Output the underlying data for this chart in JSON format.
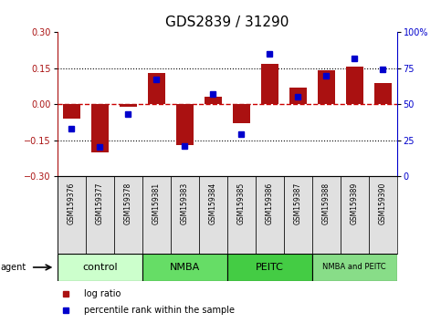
{
  "title": "GDS2839 / 31290",
  "samples": [
    "GSM159376",
    "GSM159377",
    "GSM159378",
    "GSM159381",
    "GSM159383",
    "GSM159384",
    "GSM159385",
    "GSM159386",
    "GSM159387",
    "GSM159388",
    "GSM159389",
    "GSM159390"
  ],
  "log_ratio": [
    -0.06,
    -0.2,
    -0.01,
    0.13,
    -0.17,
    0.03,
    -0.08,
    0.17,
    0.07,
    0.14,
    0.155,
    0.09
  ],
  "percentile": [
    33,
    20,
    43,
    67,
    21,
    57,
    29,
    85,
    55,
    70,
    82,
    74
  ],
  "groups": [
    {
      "label": "control",
      "start": 0,
      "end": 3,
      "color": "#ccffcc"
    },
    {
      "label": "NMBA",
      "start": 3,
      "end": 6,
      "color": "#66dd66"
    },
    {
      "label": "PEITC",
      "start": 6,
      "end": 9,
      "color": "#44cc44"
    },
    {
      "label": "NMBA and PEITC",
      "start": 9,
      "end": 12,
      "color": "#88dd88"
    }
  ],
  "ylim_left": [
    -0.3,
    0.3
  ],
  "ylim_right": [
    0,
    100
  ],
  "yticks_left": [
    -0.3,
    -0.15,
    0,
    0.15,
    0.3
  ],
  "yticks_right": [
    0,
    25,
    50,
    75,
    100
  ],
  "bar_color": "#aa1111",
  "dot_color": "#0000cc",
  "hline_color": "#cc0000",
  "dotted_line_color": "#000000",
  "bg_color": "#ffffff",
  "plot_bg": "#ffffff",
  "title_fontsize": 11,
  "tick_fontsize": 7,
  "sample_fontsize": 5.5,
  "group_fontsize": 8,
  "group_fontsize_small": 6,
  "legend_fontsize": 7,
  "agent_fontsize": 7
}
